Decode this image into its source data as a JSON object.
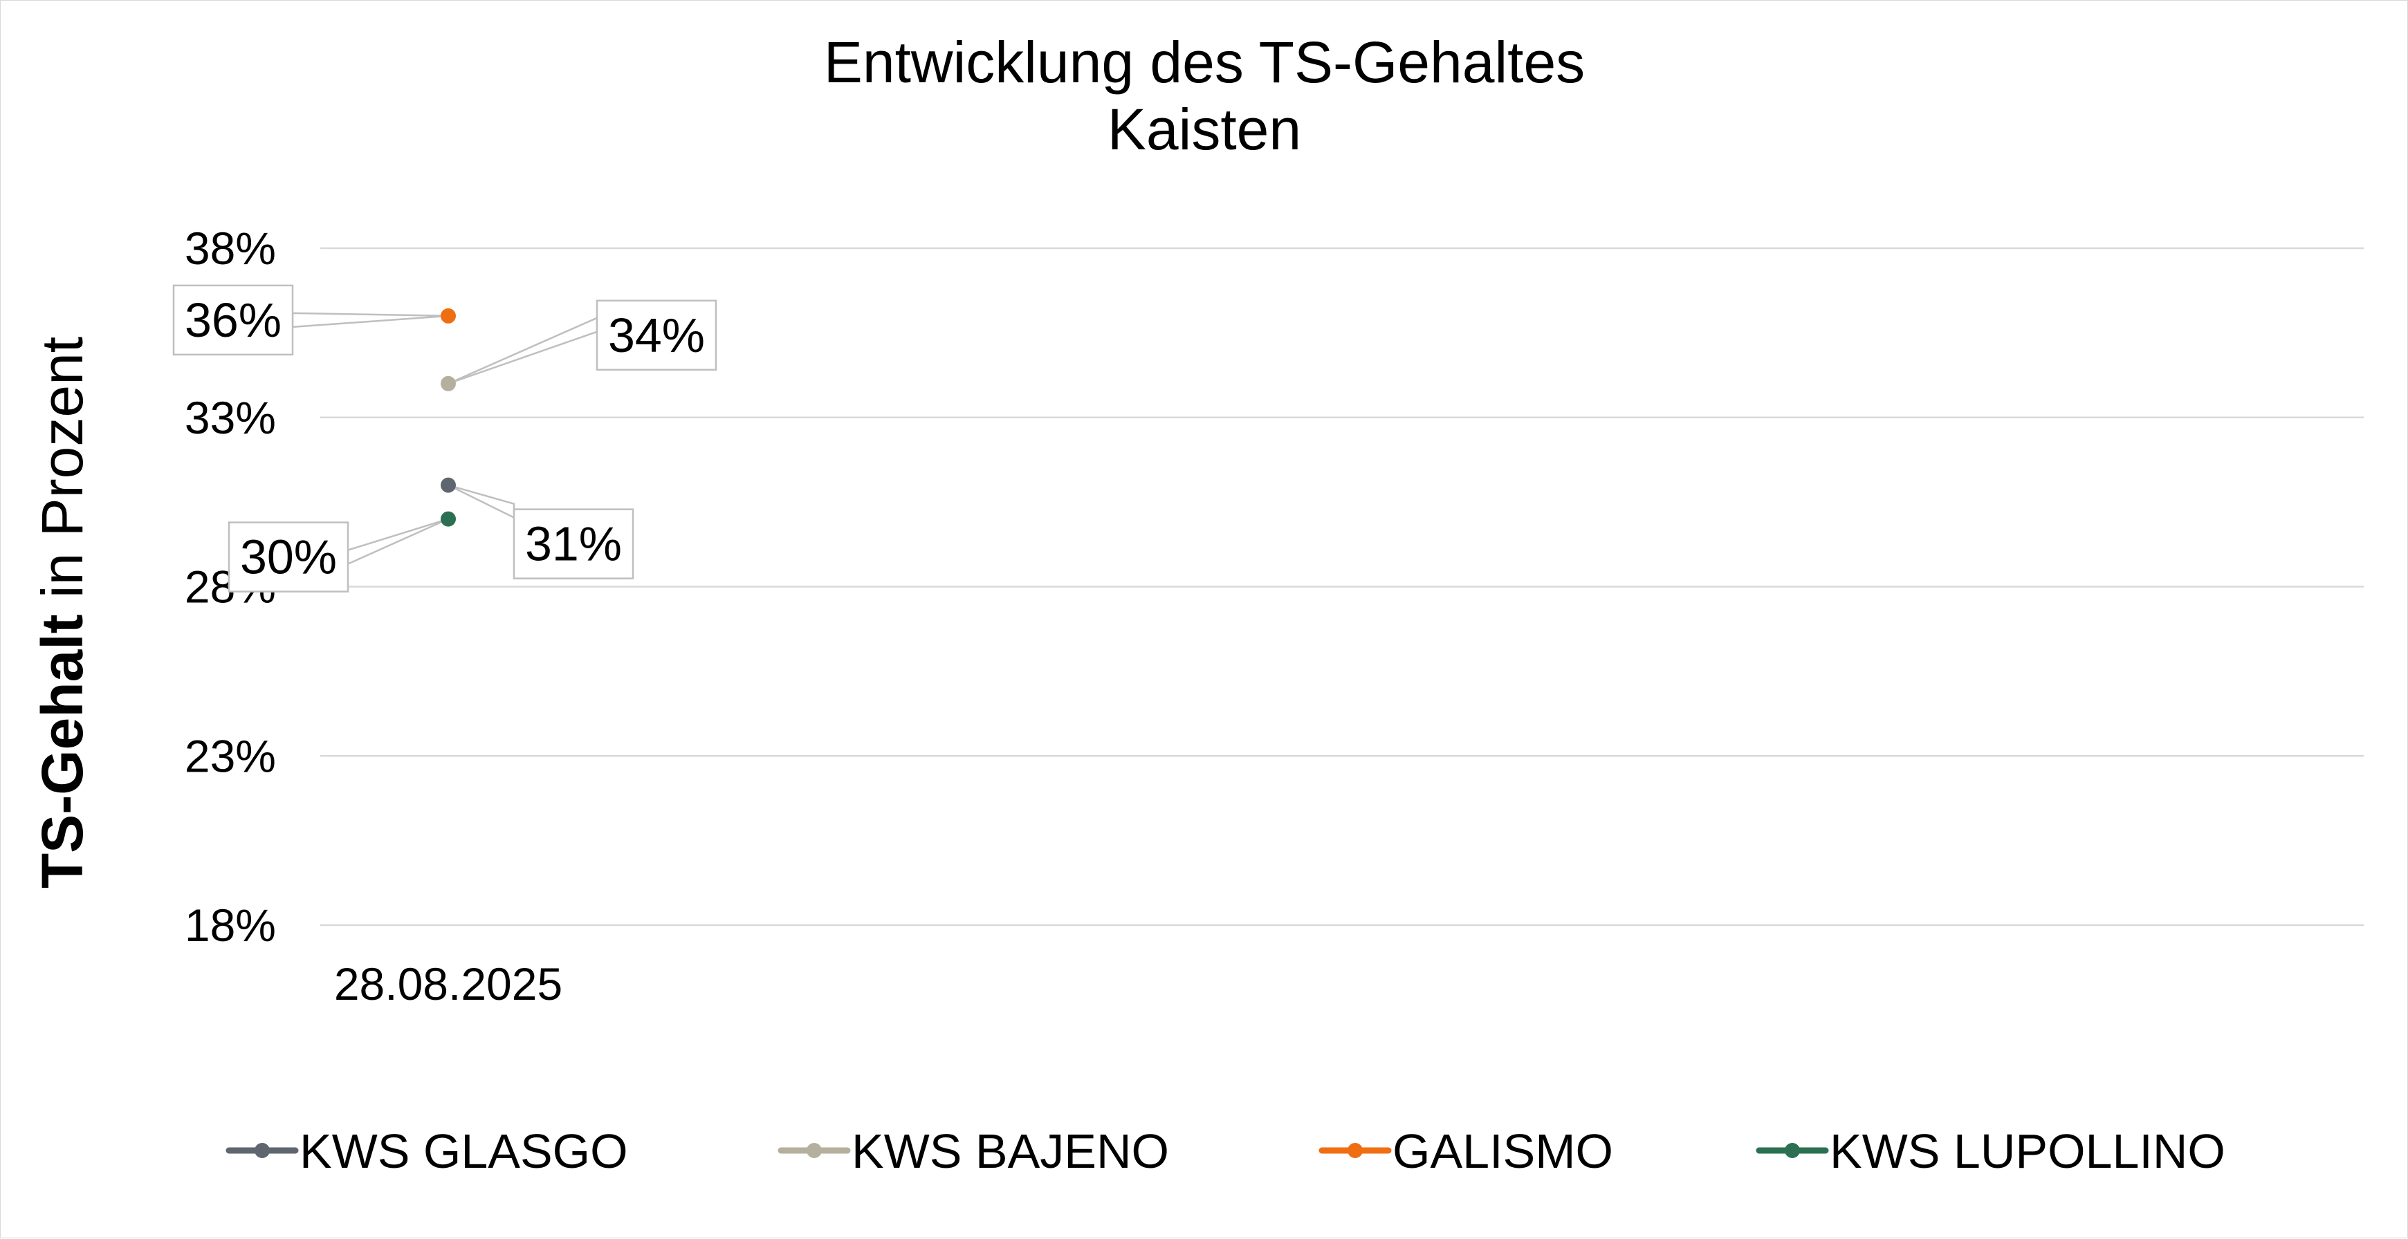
{
  "chart_data": {
    "type": "line",
    "title": "Entwicklung des TS-Gehaltes",
    "subtitle": "Kaisten",
    "ylabel_bold": "TS-Gehalt",
    "ylabel_rest": " in Prozent",
    "xlabel": "",
    "categories": [
      "28.08.2025"
    ],
    "ylim": [
      0.18,
      0.38
    ],
    "yticks": [
      0.38,
      0.33,
      0.28,
      0.23,
      0.18
    ],
    "ytick_labels": [
      "38%",
      "33%",
      "28%",
      "23%",
      "18%"
    ],
    "grid": true,
    "legend_position": "bottom",
    "series": [
      {
        "name": "KWS GLASGO",
        "color": "#5f6670",
        "values": [
          0.31
        ],
        "data_labels": [
          "31%"
        ]
      },
      {
        "name": "KWS BAJENO",
        "color": "#b5b09e",
        "values": [
          0.34
        ],
        "data_labels": [
          "34%"
        ]
      },
      {
        "name": "GALISMO",
        "color": "#ef6e12",
        "values": [
          0.36
        ],
        "data_labels": [
          "36%"
        ]
      },
      {
        "name": "KWS LUPOLLINO",
        "color": "#2b7052",
        "values": [
          0.3
        ],
        "data_labels": [
          "30%"
        ]
      }
    ]
  }
}
